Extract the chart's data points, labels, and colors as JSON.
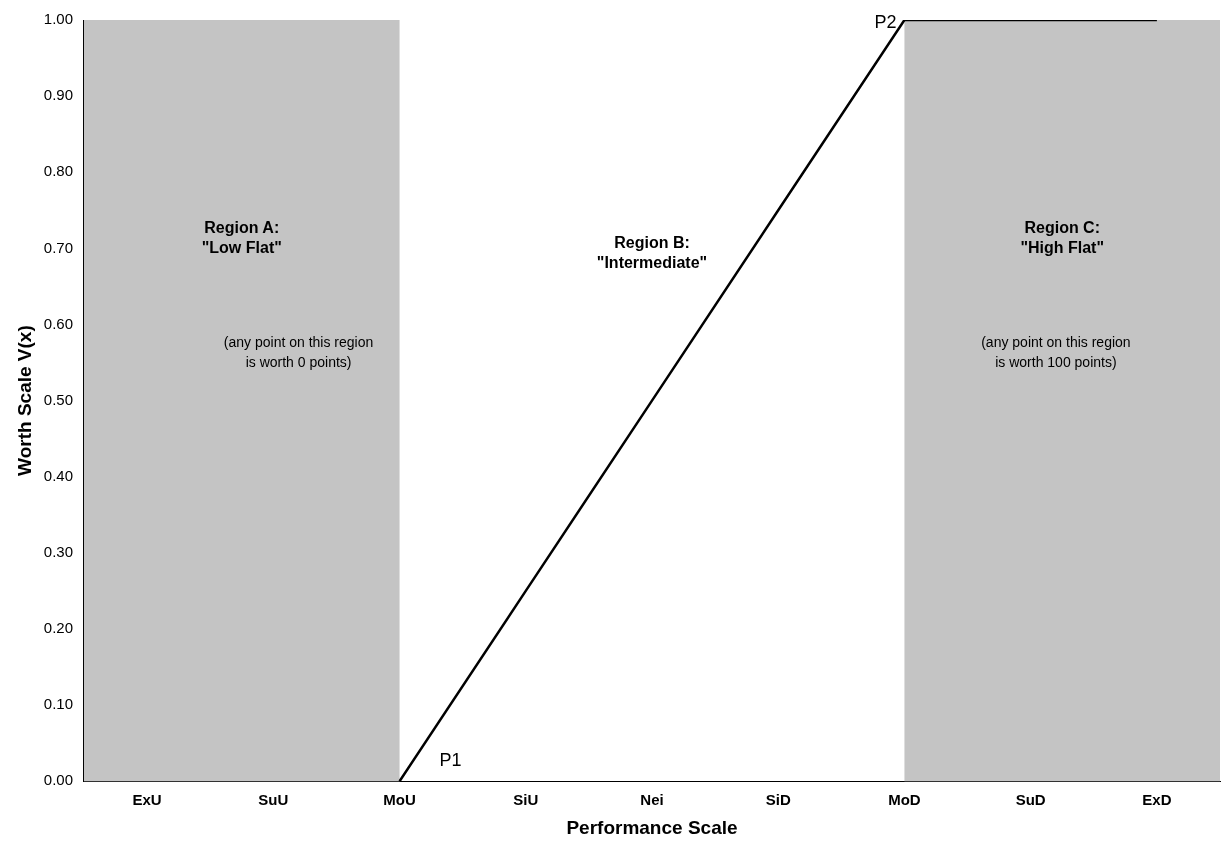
{
  "chart_data": {
    "type": "line",
    "xlabel": "Performance Scale",
    "ylabel": "Worth Scale V(x)",
    "categories": [
      "ExU",
      "SuU",
      "MoU",
      "SiU",
      "Nei",
      "SiD",
      "MoD",
      "SuD",
      "ExD"
    ],
    "series": [
      {
        "color": "#000000",
        "values": [
          null,
          null,
          0,
          0.25,
          0.5,
          0.75,
          1,
          1,
          1
        ]
      }
    ],
    "ylim": [
      0,
      1
    ],
    "yticks": [
      {
        "value": 0,
        "label": "0.00"
      },
      {
        "value": 0.1,
        "label": "0.10"
      },
      {
        "value": 0.2,
        "label": "0.20"
      },
      {
        "value": 0.3,
        "label": "0.30"
      },
      {
        "value": 0.4,
        "label": "0.40"
      },
      {
        "value": 0.5,
        "label": "0.50"
      },
      {
        "value": 0.6,
        "label": "0.60"
      },
      {
        "value": 0.7,
        "label": "0.70"
      },
      {
        "value": 0.8,
        "label": "0.80"
      },
      {
        "value": 0.9,
        "label": "0.90"
      },
      {
        "value": 1,
        "label": "1.00"
      }
    ],
    "bands": [
      {
        "axis": "x",
        "from": "ExU",
        "to": "MoU",
        "label": "Region A:\n\"Low Flat\"",
        "color": "#c4c4c4"
      },
      {
        "axis": "x",
        "from": "MoD",
        "to": "ExD",
        "label": "Region C:\n\"High Flat\"",
        "color": "#c4c4c4"
      }
    ],
    "annotations": [
      "(any point on this region\nis worth 0 points)",
      "Region B:\n\"Intermediate\"",
      "(any point on this region\nis worth 100 points)",
      {
        "text": "P1",
        "x": "MoU",
        "y": 0.02
      },
      {
        "text": "P2",
        "x": "MoD",
        "y": 1
      }
    ],
    "grid": false,
    "legend": false,
    "marker": "none",
    "line_style": "solid"
  }
}
